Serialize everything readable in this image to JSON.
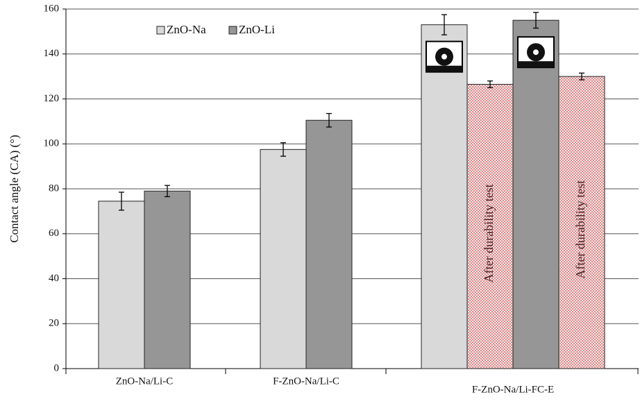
{
  "chart_data": {
    "type": "bar",
    "y_label": "Contact angle (CA) (°)",
    "categories": [
      "ZnO-Na/Li-C",
      "F-ZnO-Na/Li-C",
      "F-ZnO-Na/Li-FC-E"
    ],
    "series": [
      {
        "name": "ZnO-Na",
        "color": "#d9d9d9",
        "values": [
          74.5,
          97.5,
          153
        ],
        "errors": [
          4,
          3,
          4.5
        ]
      },
      {
        "name": "ZnO-Li",
        "color": "#969696",
        "values": [
          79,
          110.5,
          155
        ],
        "errors": [
          2.5,
          3,
          3.5
        ]
      }
    ],
    "durability_bars": [
      {
        "series": 0,
        "category": 2,
        "value": 126.5,
        "error": 1.5,
        "label": "After durability test"
      },
      {
        "series": 1,
        "category": 2,
        "value": 130,
        "error": 1.5,
        "label": "After durability test"
      }
    ],
    "ylim": [
      0,
      160
    ],
    "yticks": [
      0,
      20,
      40,
      60,
      80,
      100,
      120,
      140,
      160
    ],
    "grid": true
  }
}
